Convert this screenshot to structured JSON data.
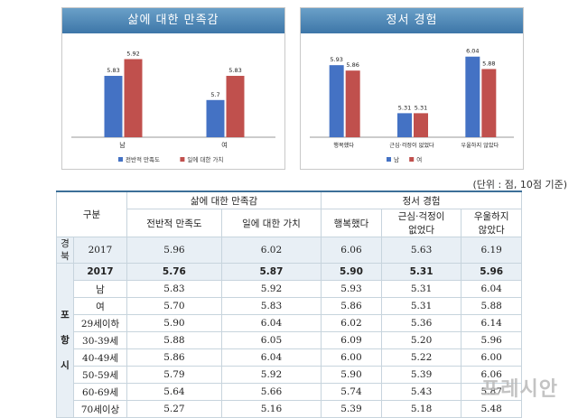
{
  "chart_data": [
    {
      "type": "bar",
      "title": "삶에 대한 만족감",
      "categories": [
        "남",
        "여"
      ],
      "series": [
        {
          "name": "전반적 만족도",
          "values": [
            5.83,
            5.7
          ],
          "color": "#4472c4"
        },
        {
          "name": "일에 대한 가치",
          "values": [
            5.92,
            5.83
          ],
          "color": "#c0504d"
        }
      ],
      "ylim": [
        5.5,
        6.0
      ],
      "grid": false,
      "legend": "bottom"
    },
    {
      "type": "bar",
      "title": "정서 경험",
      "categories": [
        "행복했다",
        "근심·걱정이 없었다",
        "우울하지 않았다"
      ],
      "series": [
        {
          "name": "남",
          "values": [
            5.93,
            5.31,
            6.04
          ],
          "color": "#4472c4"
        },
        {
          "name": "여",
          "values": [
            5.86,
            5.31,
            5.88
          ],
          "color": "#c0504d"
        }
      ],
      "ylim": [
        5.0,
        6.2
      ],
      "grid": false,
      "legend": "bottom"
    }
  ],
  "unit_note": "(단위 : 점, 10점 기준)",
  "table": {
    "header": {
      "group": "구분",
      "satisfaction": "삶에 대한 만족감",
      "overall": "전반적 만족도",
      "work_value": "일에 대한 가치",
      "emotion": "정서 경험",
      "happy": "행복했다",
      "worry_l1": "근심·걱정이",
      "worry_l2": "없었다",
      "depress_l1": "우울하지",
      "depress_l2": "않았다"
    },
    "side_gyeongbuk": "경\n북",
    "side_pohang": "포\n항\n시",
    "rows": [
      {
        "cat": "2017",
        "v": [
          "5.96",
          "6.02",
          "6.06",
          "5.63",
          "6.19"
        ]
      },
      {
        "cat": "2017",
        "v": [
          "5.76",
          "5.87",
          "5.90",
          "5.31",
          "5.96"
        ]
      },
      {
        "cat": "남",
        "v": [
          "5.83",
          "5.92",
          "5.93",
          "5.31",
          "6.04"
        ]
      },
      {
        "cat": "여",
        "v": [
          "5.70",
          "5.83",
          "5.86",
          "5.31",
          "5.88"
        ]
      },
      {
        "cat": "29세이하",
        "v": [
          "5.90",
          "6.04",
          "6.02",
          "5.36",
          "6.14"
        ]
      },
      {
        "cat": "30-39세",
        "v": [
          "5.88",
          "6.05",
          "6.09",
          "5.20",
          "5.96"
        ]
      },
      {
        "cat": "40-49세",
        "v": [
          "5.86",
          "6.04",
          "6.00",
          "5.22",
          "6.00"
        ]
      },
      {
        "cat": "50-59세",
        "v": [
          "5.79",
          "5.92",
          "5.90",
          "5.39",
          "6.06"
        ]
      },
      {
        "cat": "60-69세",
        "v": [
          "5.64",
          "5.66",
          "5.74",
          "5.43",
          "5.87"
        ]
      },
      {
        "cat": "70세이상",
        "v": [
          "5.27",
          "5.16",
          "5.39",
          "5.18",
          "5.48"
        ]
      }
    ]
  },
  "watermark": "프레시안"
}
